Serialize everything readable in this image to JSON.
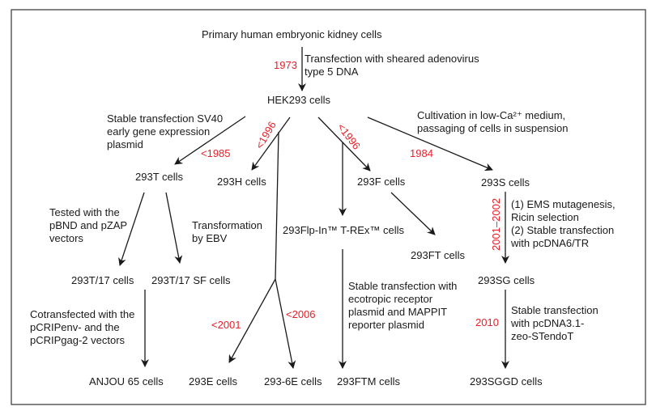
{
  "nodes": {
    "primary": "Primary human embryonic kidney cells",
    "hek293": "HEK293 cells",
    "t293": "293T cells",
    "h293": "293H cells",
    "f293": "293F cells",
    "s293": "293S cells",
    "flp": "293Flp-In™ T-REx™ cells",
    "ft293": "293FT cells",
    "t17": "293T/17 cells",
    "t17sf": "293T/17 SF cells",
    "sg293": "293SG cells",
    "anjou": "ANJOU 65 cells",
    "e293": "293E cells",
    "e6_293": "293-6E cells",
    "ftm293": "293FTM cells",
    "sggd293": "293SGGD cells"
  },
  "labels": {
    "adeno": [
      "Transfection with sheared adenovirus",
      "type 5 DNA"
    ],
    "sv40": [
      "Stable transfection SV40",
      "early gene expression",
      "plasmid"
    ],
    "calcium": [
      "Cultivation in low-Ca²⁺ medium,",
      "passaging of cells in suspension"
    ],
    "tested": [
      "Tested with the",
      "pBND and pZAP",
      "vectors"
    ],
    "ebv": [
      "Transformation",
      "by EBV"
    ],
    "ems": [
      "(1) EMS mutagenesis,",
      "Ricin selection",
      "(2) Stable transfection",
      "with pcDNA6/TR"
    ],
    "mappit": [
      "Stable transfection with",
      "ecotropic receptor",
      "plasmid and MAPPIT",
      "reporter plasmid"
    ],
    "cotrans": [
      "Cotransfected with the",
      "pCRIPenv- and the",
      "pCRIPgag-2 vectors"
    ],
    "stendo": [
      "Stable transfection",
      "with pcDNA3.1-",
      "zeo-STendoT"
    ]
  },
  "dates": {
    "d1973": "1973",
    "d1985": "<1985",
    "d1996h": "<1996",
    "d1996f": "<1996",
    "d1984": "1984",
    "d2001_2002": "2001–2002",
    "d2001": "<2001",
    "d2006": "<2006",
    "d2010": "2010"
  },
  "colors": {
    "date": "#e8202a",
    "text": "#1a1a1a"
  }
}
